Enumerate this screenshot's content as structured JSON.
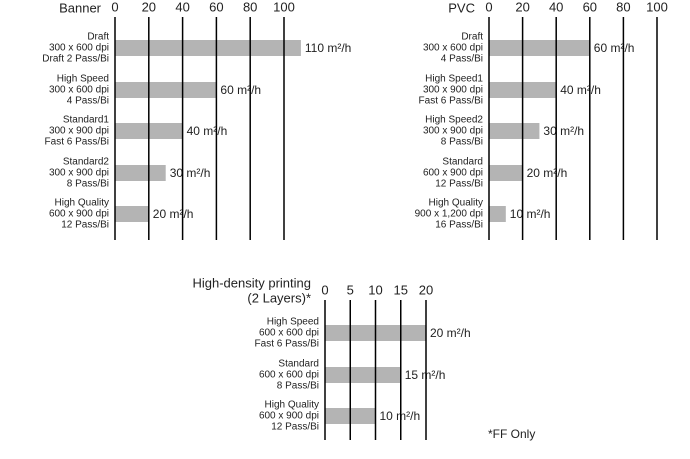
{
  "chart_data": [
    {
      "type": "bar",
      "orientation": "horizontal",
      "title": [
        "Banner"
      ],
      "categories": [
        [
          "Draft",
          "300 x 600 dpi",
          "Draft 2 Pass/Bi"
        ],
        [
          "High Speed",
          "300 x 600 dpi",
          "4 Pass/Bi"
        ],
        [
          "Standard1",
          "300 x 900 dpi",
          "Fast 6 Pass/Bi"
        ],
        [
          "Standard2",
          "300 x 900 dpi",
          "8 Pass/Bi"
        ],
        [
          "High Quality",
          "600 x 900 dpi",
          "12 Pass/Bi"
        ]
      ],
      "values": [
        110,
        60,
        40,
        30,
        20
      ],
      "value_labels": [
        "110 m²/h",
        "60 m²/h",
        "40 m²/h",
        "30 m²/h",
        "20 m²/h"
      ],
      "color": "#b4b4b4",
      "xlim": [
        0,
        100
      ],
      "xticks": [
        0,
        20,
        40,
        60,
        80,
        100
      ],
      "grid": true
    },
    {
      "type": "bar",
      "orientation": "horizontal",
      "title": [
        "PVC"
      ],
      "categories": [
        [
          "Draft",
          "300 x 600 dpi",
          "4 Pass/Bi"
        ],
        [
          "High Speed1",
          "300 x 900 dpi",
          "Fast 6 Pass/Bi"
        ],
        [
          "High Speed2",
          "300 x 900 dpi",
          "8 Pass/Bi"
        ],
        [
          "Standard",
          "600 x 900 dpi",
          "12 Pass/Bi"
        ],
        [
          "High Quality",
          "900 x 1,200 dpi",
          "16 Pass/Bi"
        ]
      ],
      "values": [
        60,
        40,
        30,
        20,
        10
      ],
      "value_labels": [
        "60 m²/h",
        "40 m²/h",
        "30 m²/h",
        "20 m²/h",
        "10 m²/h"
      ],
      "color": "#b4b4b4",
      "xlim": [
        0,
        100
      ],
      "xticks": [
        0,
        20,
        40,
        60,
        80,
        100
      ],
      "grid": true
    },
    {
      "type": "bar",
      "orientation": "horizontal",
      "title": [
        "High-density printing",
        "(2 Layers)*"
      ],
      "categories": [
        [
          "High Speed",
          "600 x 600 dpi",
          "Fast 6 Pass/Bi"
        ],
        [
          "Standard",
          "600 x 600 dpi",
          "8 Pass/Bi"
        ],
        [
          "High Quality",
          "600 x 900 dpi",
          "12 Pass/Bi"
        ]
      ],
      "values": [
        20,
        15,
        10
      ],
      "value_labels": [
        "20 m²/h",
        "15 m²/h",
        "10 m²/h"
      ],
      "color": "#b4b4b4",
      "xlim": [
        0,
        20
      ],
      "xticks": [
        0,
        5,
        10,
        15,
        20
      ],
      "grid": true,
      "annotation": "*FF Only"
    }
  ]
}
